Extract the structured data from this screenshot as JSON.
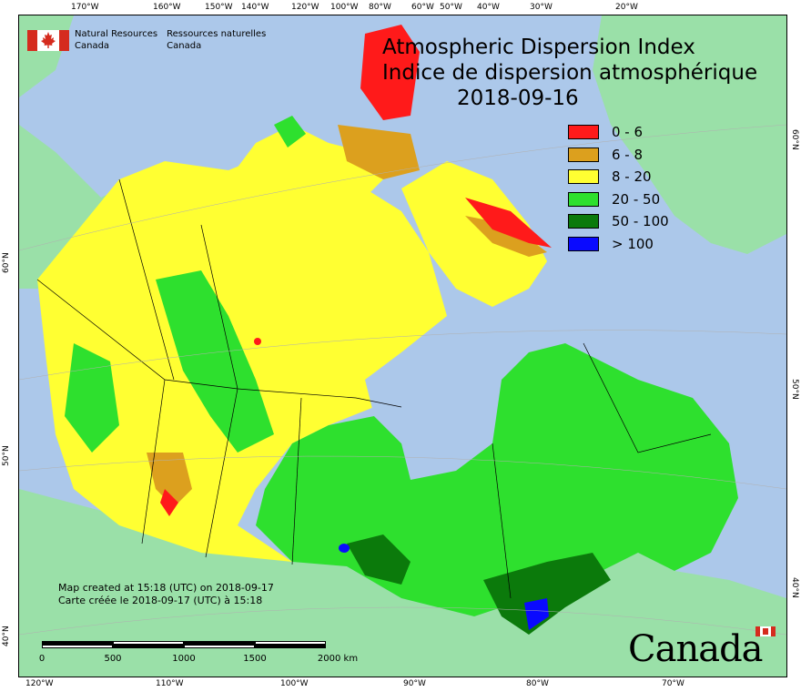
{
  "map": {
    "title_en": "Atmospheric Dispersion Index",
    "title_fr": "Indice de dispersion atmosphérique",
    "date": "2018-09-16",
    "legend": [
      {
        "label": "0 - 6",
        "color": "#ff1a1a"
      },
      {
        "label": "6 - 8",
        "color": "#dca01e"
      },
      {
        "label": "8 - 20",
        "color": "#ffff32"
      },
      {
        "label": "20 - 50",
        "color": "#2ee02e"
      },
      {
        "label": "50 - 100",
        "color": "#0b7a0b"
      },
      {
        "label": "> 100",
        "color": "#0a0aff"
      }
    ],
    "colors": {
      "water": "#acc8ea",
      "foreign_land": "#9ae0a8",
      "greenland": "#9ae0a8"
    },
    "agency": {
      "en_line1": "Natural Resources",
      "en_line2": "Canada",
      "fr_line1": "Ressources naturelles",
      "fr_line2": "Canada"
    },
    "credit": {
      "en": "Map created at 15:18 (UTC) on 2018-09-17",
      "fr": "Carte créée le 2018-09-17 (UTC) à 15:18"
    },
    "scale": {
      "labels": [
        "0",
        "500",
        "1000",
        "1500",
        "2000  km"
      ]
    },
    "wordmark": "Canada",
    "graticule": {
      "top": [
        "170°W",
        "160°W",
        "150°W",
        "140°W",
        "120°W",
        "100°W",
        "80°W",
        "60°W",
        "50°W",
        "40°W",
        "30°W",
        "20°W"
      ],
      "bottom": [
        "120°W",
        "110°W",
        "100°W",
        "90°W",
        "80°W",
        "70°W"
      ],
      "left": [
        "60°N",
        "50°N",
        "40°N"
      ],
      "right": [
        "60°N",
        "50°N",
        "40°N"
      ]
    }
  }
}
